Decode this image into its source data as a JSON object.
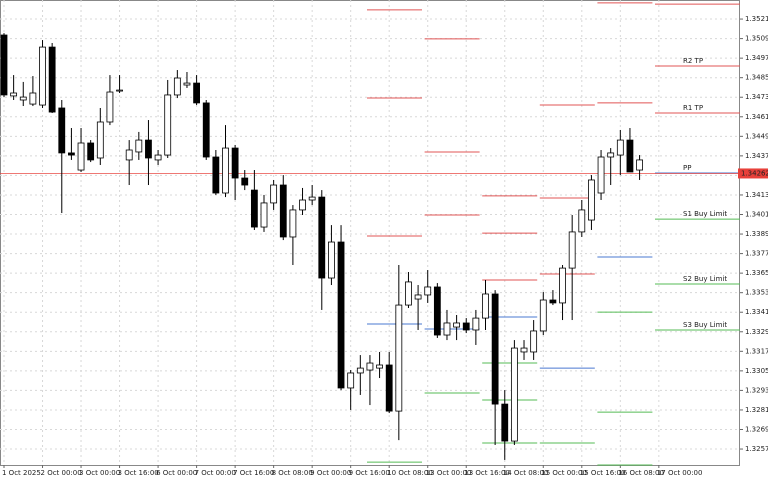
{
  "chart_data": {
    "type": "candlestick",
    "categories": [
      "1 Oct 2025",
      null,
      null,
      null,
      "2 Oct 00:00",
      null,
      null,
      null,
      "3 Oct 00:00",
      null,
      null,
      null,
      "3 Oct 16:00",
      null,
      null,
      null,
      "6 Oct 00:00",
      null,
      null,
      null,
      "7 Oct 00:00",
      null,
      null,
      null,
      "7 Oct 16:00",
      null,
      null,
      null,
      "8 Oct 08:00",
      null,
      null,
      null,
      "9 Oct 00:00",
      null,
      null,
      null,
      "9 Oct 16:00",
      null,
      null,
      null,
      "10 Oct 08:00",
      null,
      null,
      null,
      "13 Oct 00:00",
      null,
      null,
      null,
      "13 Oct 16:00",
      null,
      null,
      null,
      "14 Oct 08:00",
      null,
      null,
      null,
      "15 Oct 00:00",
      null,
      null,
      null,
      "15 Oct 16:00",
      null,
      null,
      null,
      "16 Oct 08:00",
      null,
      null,
      null,
      "17 Oct 00:00"
    ],
    "open": [
      1.35112,
      1.34738,
      1.34713,
      1.34688,
      1.34682,
      1.35038,
      1.34664,
      1.34388,
      1.34283,
      1.34449,
      1.34357,
      1.34578,
      1.34768,
      1.34345,
      1.34394,
      1.34467,
      1.34345,
      1.34375,
      1.34744,
      1.34805,
      1.34817,
      1.34695,
      1.34363,
      1.34142,
      1.34418,
      1.34234,
      1.3416,
      1.33933,
      1.34081,
      1.34191,
      1.33872,
      1.34038,
      1.34099,
      1.34117,
      1.3362,
      1.33841,
      1.32945,
      1.33037,
      1.33055,
      1.33067,
      1.33086,
      1.32803,
      1.33454,
      1.33491,
      1.33516,
      1.33565,
      1.3327,
      1.33319,
      1.33344,
      1.33301,
      1.33374,
      1.33522,
      1.32846,
      1.32619,
      1.33166,
      1.33166,
      1.33295,
      1.33485,
      1.33467,
      1.33681,
      1.33903,
      1.33976,
      1.34142,
      1.34363,
      1.34375,
      1.34467,
      1.34283,
      null,
      null
    ],
    "high": [
      1.35124,
      1.34866,
      1.34824,
      1.3486,
      1.35081,
      1.35063,
      1.34713,
      1.34541,
      1.34541,
      1.34467,
      1.34664,
      1.34866,
      1.34866,
      1.34467,
      1.34517,
      1.3459,
      1.34406,
      1.34836,
      1.34897,
      1.34885,
      1.34866,
      1.34713,
      1.34406,
      1.34559,
      1.34437,
      1.34283,
      1.34283,
      1.3413,
      1.34222,
      1.34252,
      1.34068,
      1.34173,
      1.34191,
      1.3416,
      1.33945,
      1.33945,
      1.33055,
      1.33147,
      1.33147,
      1.33166,
      1.33166,
      1.337,
      1.33657,
      1.33577,
      1.33669,
      1.33589,
      1.33424,
      1.33393,
      1.33374,
      1.33424,
      1.33608,
      1.33546,
      1.32932,
      1.33239,
      1.33239,
      1.33362,
      1.33534,
      1.33546,
      1.337,
      1.34007,
      1.34099,
      1.34252,
      1.34406,
      1.34418,
      1.34529,
      1.34541,
      1.34375,
      null,
      null
    ],
    "low": [
      1.34731,
      1.34713,
      1.34676,
      1.34676,
      1.34664,
      1.34633,
      1.34019,
      1.34345,
      1.34271,
      1.34332,
      1.34314,
      1.34559,
      1.34756,
      1.34191,
      1.34345,
      1.34191,
      1.34314,
      1.34357,
      1.34725,
      1.34787,
      1.34682,
      1.34345,
      1.3413,
      1.34117,
      1.34099,
      1.3416,
      1.33915,
      1.33903,
      1.34038,
      1.33853,
      1.337,
      1.34007,
      1.34068,
      1.33424,
      1.33577,
      1.32932,
      1.3281,
      1.32902,
      1.3284,
      1.33006,
      1.32791,
      1.32625,
      1.33436,
      1.33301,
      1.33467,
      1.33252,
      1.33239,
      1.33239,
      1.33282,
      1.33209,
      1.33301,
      1.32595,
      1.32503,
      1.32595,
      1.33117,
      1.33117,
      1.3327,
      1.33454,
      1.33362,
      1.33362,
      1.33872,
      1.33915,
      1.34099,
      1.34191,
      1.34252,
      1.34271,
      1.34222,
      null,
      null
    ],
    "close": [
      1.34744,
      1.34756,
      1.34731,
      1.34756,
      1.35038,
      1.34639,
      1.34388,
      1.34375,
      1.34449,
      1.34345,
      1.34578,
      1.34762,
      1.34774,
      1.34406,
      1.34467,
      1.34357,
      1.34375,
      1.34744,
      1.34848,
      1.34817,
      1.34695,
      1.34363,
      1.34142,
      1.34418,
      1.34234,
      1.34191,
      1.33933,
      1.34081,
      1.34191,
      1.33872,
      1.34038,
      1.34099,
      1.34117,
      1.3362,
      1.33841,
      1.32945,
      1.33037,
      1.33067,
      1.33098,
      1.33086,
      1.32803,
      1.33454,
      1.33596,
      1.33516,
      1.33565,
      1.3327,
      1.33344,
      1.33344,
      1.33301,
      1.33374,
      1.33522,
      1.32846,
      1.32619,
      1.3319,
      1.3319,
      1.33295,
      1.33485,
      1.33467,
      1.33681,
      1.33903,
      1.34038,
      1.34222,
      1.34363,
      1.34388,
      1.34467,
      1.34271,
      1.34345,
      null,
      null
    ],
    "ylim": [
      1.32472,
      1.35327
    ],
    "yticks": [
      {
        "value": 1.3257,
        "label": "1.32570"
      },
      {
        "value": 1.3269,
        "label": "1.32690"
      },
      {
        "value": 1.3281,
        "label": "1.32810"
      },
      {
        "value": 1.3293,
        "label": "1.32930"
      },
      {
        "value": 1.3305,
        "label": "1.33050"
      },
      {
        "value": 1.3317,
        "label": "1.33170"
      },
      {
        "value": 1.3329,
        "label": "1.33290"
      },
      {
        "value": 1.3341,
        "label": "1.33410"
      },
      {
        "value": 1.3353,
        "label": "1.33530"
      },
      {
        "value": 1.3365,
        "label": "1.33650"
      },
      {
        "value": 1.3377,
        "label": "1.33770"
      },
      {
        "value": 1.3389,
        "label": "1.33890"
      },
      {
        "value": 1.3401,
        "label": "1.34010"
      },
      {
        "value": 1.3413,
        "label": "1.34130"
      },
      {
        "value": 1.3425,
        "label": "1.34250"
      },
      {
        "value": 1.3437,
        "label": "1.34370"
      },
      {
        "value": 1.3449,
        "label": "1.34490"
      },
      {
        "value": 1.3461,
        "label": "1.34610"
      },
      {
        "value": 1.3473,
        "label": "1.34730"
      },
      {
        "value": 1.3485,
        "label": "1.34850"
      },
      {
        "value": 1.3497,
        "label": "1.34970"
      },
      {
        "value": 1.3509,
        "label": "1.35090"
      },
      {
        "value": 1.3521,
        "label": "1.35210"
      }
    ],
    "last_price": {
      "value": 1.34262,
      "label": "1.34262"
    },
    "grid": true,
    "up_color": "#ffffff",
    "down_color": "#000000",
    "last_price_color": "#e8403a",
    "pivots": [
      {
        "color": "#e05555",
        "values": [
          1.35266,
          1.35088,
          1.34124,
          1.34682,
          1.35309,
          1.35302
        ]
      },
      {
        "name": "R2 TP",
        "color": "#e05555",
        "values": [
          1.34725,
          1.34394,
          1.33896,
          1.34111,
          1.34695,
          1.34922
        ]
      },
      {
        "name": "R1 TP",
        "color": "#e05555",
        "values": [
          1.33878,
          1.34007,
          1.33608,
          1.33645,
          null,
          1.34633
        ]
      },
      {
        "name": "PP",
        "color": "#4a78d0",
        "values": [
          1.33338,
          1.33307,
          1.33381,
          1.33067,
          1.33749,
          1.34265
        ]
      },
      {
        "name": "S1 Buy Limit",
        "color": "#55bb55",
        "values": [
          null,
          1.32914,
          1.33098,
          1.32607,
          1.33411,
          1.33982
        ]
      },
      {
        "name": "S2 Buy Limit",
        "color": "#55bb55",
        "values": [
          null,
          null,
          1.32871,
          null,
          1.32797,
          1.33583
        ]
      },
      {
        "name": "S3 Buy Limit",
        "color": "#55bb55",
        "values": [
          1.3249,
          null,
          1.32607,
          null,
          1.32472,
          1.33301
        ]
      }
    ]
  }
}
